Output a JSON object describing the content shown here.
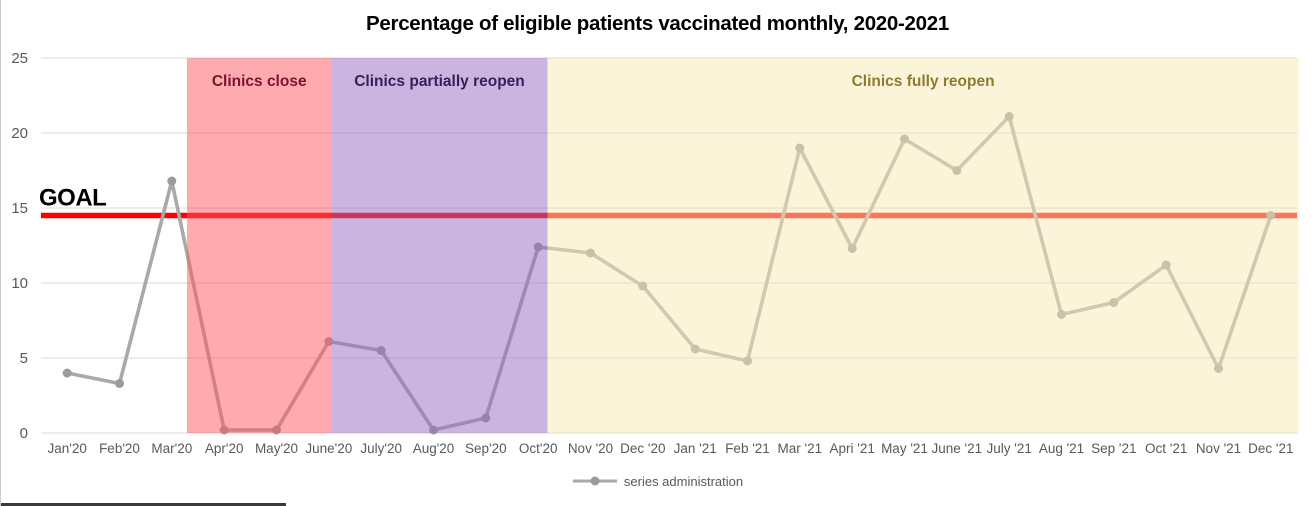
{
  "chart_data": {
    "type": "line",
    "title": "Percentage of eligible patients vaccinated monthly, 2020-2021",
    "xlabel": "",
    "ylabel": "",
    "ylim": [
      0,
      25
    ],
    "yticks": [
      0,
      5,
      10,
      15,
      20,
      25
    ],
    "grid": true,
    "legend_position": "bottom",
    "categories": [
      "Jan'20",
      "Feb'20",
      "Mar'20",
      "Apr'20",
      "May'20",
      "June'20",
      "July'20",
      "Aug'20",
      "Sep'20",
      "Oct'20",
      "Nov '20",
      "Dec '20",
      "Jan '21",
      "Feb '21",
      "Mar '21",
      "Apri '21",
      "May '21",
      "June '21",
      "July '21",
      "Aug '21",
      "Sep '21",
      "Oct '21",
      "Nov '21",
      "Dec '21"
    ],
    "series": [
      {
        "name": "series administration",
        "line_color": "#a9a9a9",
        "marker_color": "#9b9b9b",
        "values": [
          4.0,
          3.3,
          16.8,
          0.2,
          0.2,
          6.1,
          5.5,
          0.2,
          1.0,
          12.4,
          12.0,
          9.8,
          5.6,
          4.8,
          19.0,
          12.3,
          19.6,
          17.5,
          21.1,
          7.9,
          8.7,
          11.2,
          4.3,
          14.5
        ]
      }
    ],
    "goal_line": {
      "label": "GOAL",
      "value": 14.5,
      "color": "#ff0000",
      "label_color": "#000000"
    },
    "regions": [
      {
        "label": "Clinics close",
        "from_index": 2.29,
        "to_index": 5.05,
        "fill": "#ff5560",
        "opacity": 0.5,
        "label_color": "#7a1230"
      },
      {
        "label": "Clinics partially reopen",
        "from_index": 5.05,
        "to_index": 9.18,
        "fill": "#976bc1",
        "opacity": 0.5,
        "label_color": "#33215a"
      },
      {
        "label": "Clinics fully reopen",
        "from_index": 9.18,
        "to_index": 23.53,
        "fill": "#f9e9b3",
        "opacity": 0.5,
        "label_color": "#8c7b33"
      }
    ],
    "axis_color": "#595959",
    "gridline_color": "#d9d9d9"
  },
  "legend": {
    "label": "series administration"
  }
}
